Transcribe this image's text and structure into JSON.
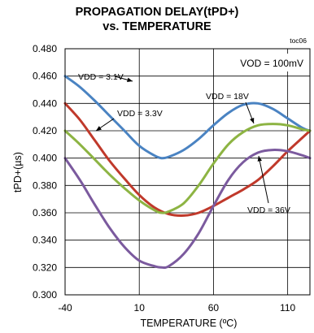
{
  "chart_data": {
    "type": "line",
    "title": "PROPAGATION DELAY(tPD+)",
    "subtitle": "vs. TEMPERATURE",
    "code": "toc06",
    "xlabel": "TEMPERATURE (ºC)",
    "ylabel": "tPD+(µs)",
    "xlim": [
      -40,
      125
    ],
    "ylim": [
      0.3,
      0.48
    ],
    "x_ticks": [
      -40,
      10,
      60,
      110
    ],
    "y_ticks": [
      0.3,
      0.32,
      0.34,
      0.36,
      0.38,
      0.4,
      0.42,
      0.44,
      0.46,
      0.48
    ],
    "grid": true,
    "annotation_box": "VOD = 100mV",
    "series": [
      {
        "name": "VDD = 3.1V",
        "color": "#4a83c2",
        "x": [
          -40,
          -30,
          -20,
          -10,
          0,
          10,
          20,
          25,
          30,
          40,
          50,
          60,
          70,
          80,
          90,
          100,
          110,
          120,
          125
        ],
        "y": [
          0.46,
          0.452,
          0.442,
          0.431,
          0.42,
          0.409,
          0.402,
          0.4,
          0.401,
          0.406,
          0.414,
          0.424,
          0.433,
          0.439,
          0.44,
          0.436,
          0.429,
          0.422,
          0.42
        ]
      },
      {
        "name": "VDD = 3.3V",
        "color": "#c0392b",
        "x": [
          -40,
          -30,
          -20,
          -10,
          0,
          10,
          20,
          30,
          40,
          50,
          60,
          70,
          80,
          90,
          100,
          110,
          120,
          125
        ],
        "y": [
          0.44,
          0.428,
          0.413,
          0.398,
          0.385,
          0.373,
          0.364,
          0.359,
          0.358,
          0.36,
          0.365,
          0.371,
          0.377,
          0.384,
          0.394,
          0.405,
          0.415,
          0.42
        ]
      },
      {
        "name": "VDD = 18V",
        "color": "#8db443",
        "x": [
          -40,
          -30,
          -20,
          -10,
          0,
          10,
          20,
          25,
          30,
          40,
          50,
          60,
          70,
          80,
          90,
          100,
          110,
          120,
          125
        ],
        "y": [
          0.42,
          0.41,
          0.399,
          0.388,
          0.378,
          0.369,
          0.362,
          0.36,
          0.361,
          0.367,
          0.38,
          0.396,
          0.41,
          0.419,
          0.424,
          0.425,
          0.424,
          0.421,
          0.42
        ]
      },
      {
        "name": "VDD = 36V",
        "color": "#7b5a9e",
        "x": [
          -40,
          -30,
          -20,
          -10,
          0,
          10,
          20,
          25,
          30,
          40,
          50,
          60,
          70,
          80,
          90,
          100,
          110,
          120,
          125
        ],
        "y": [
          0.4,
          0.384,
          0.366,
          0.349,
          0.335,
          0.325,
          0.321,
          0.32,
          0.321,
          0.33,
          0.345,
          0.365,
          0.384,
          0.397,
          0.404,
          0.406,
          0.405,
          0.402,
          0.4
        ]
      }
    ],
    "labels": [
      {
        "series": 0,
        "text": "VDD = 3.1V"
      },
      {
        "series": 1,
        "text": "VDD = 3.3V"
      },
      {
        "series": 2,
        "text": "VDD = 18V"
      },
      {
        "series": 3,
        "text": "VDD = 36V"
      }
    ]
  }
}
